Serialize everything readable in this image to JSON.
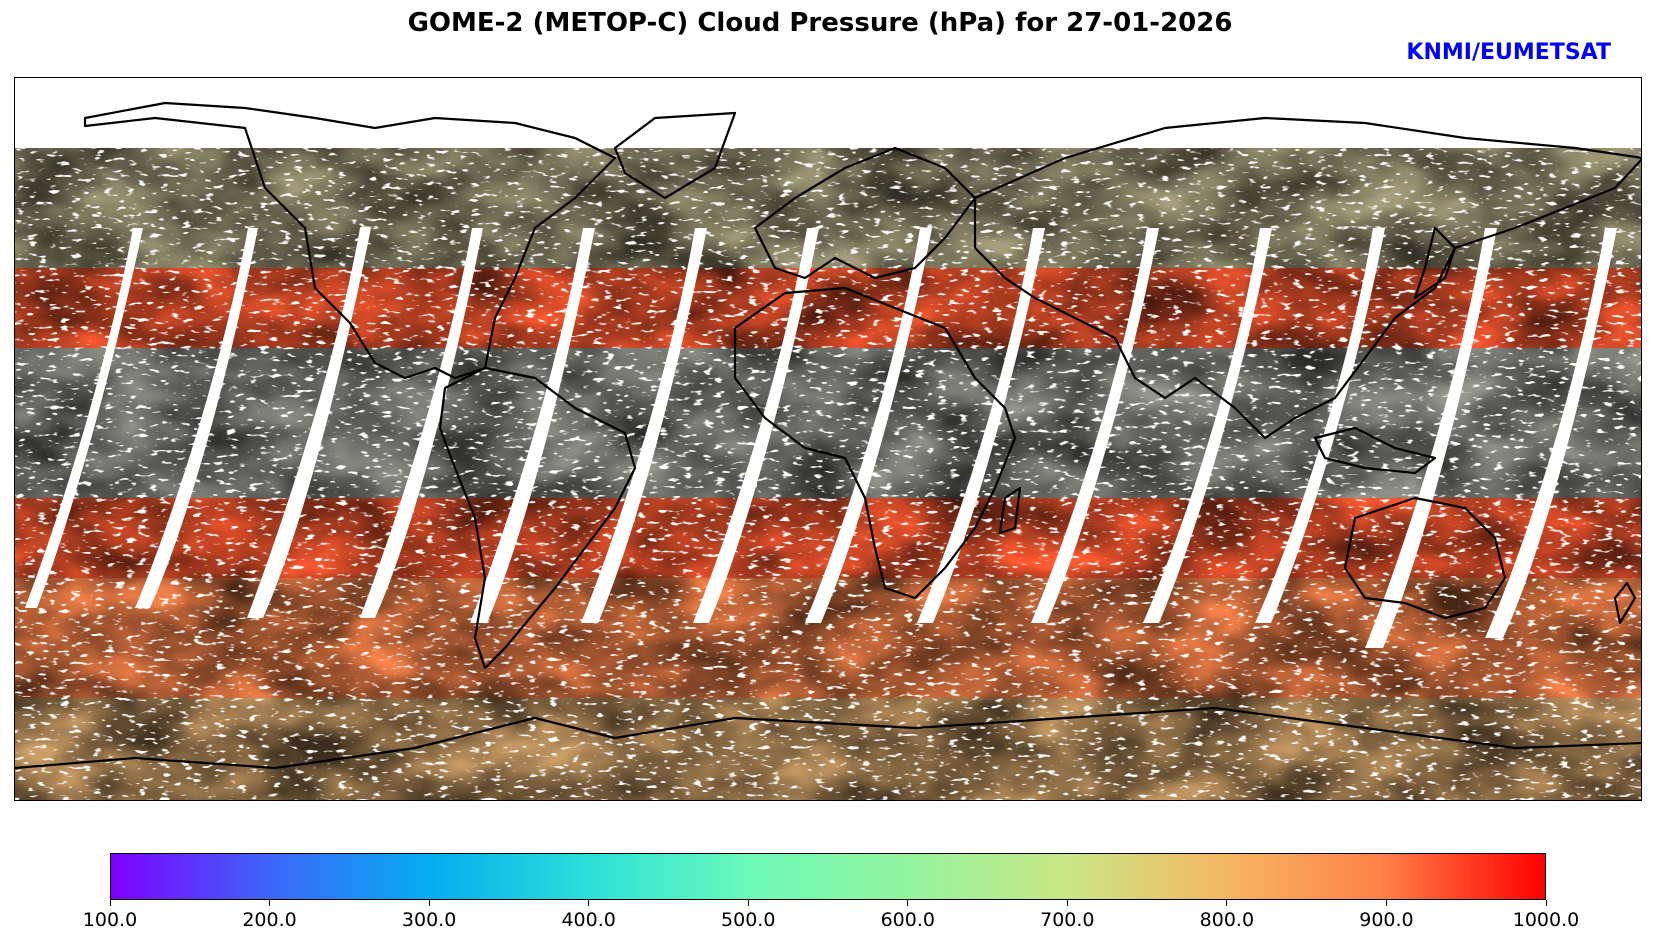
{
  "title": "GOME-2 (METOP-C) Cloud Pressure (hPa) for 27-01-2026",
  "credit": "KNMI/EUMETSAT",
  "colors": {
    "credit": "#0000ff",
    "coast": "#000000",
    "gap": "#ffffff",
    "gradient": [
      "#7f00ff",
      "#3d66f9",
      "#05adef",
      "#2be0d8",
      "#6bfab9",
      "#94f49f",
      "#cae686",
      "#f4b761",
      "#ff7f47",
      "#ff0000"
    ]
  },
  "colorbar": {
    "min": 100.0,
    "max": 1000.0,
    "ticks": [
      "100.0",
      "200.0",
      "300.0",
      "400.0",
      "500.0",
      "600.0",
      "700.0",
      "800.0",
      "900.0",
      "1000.0"
    ]
  }
}
